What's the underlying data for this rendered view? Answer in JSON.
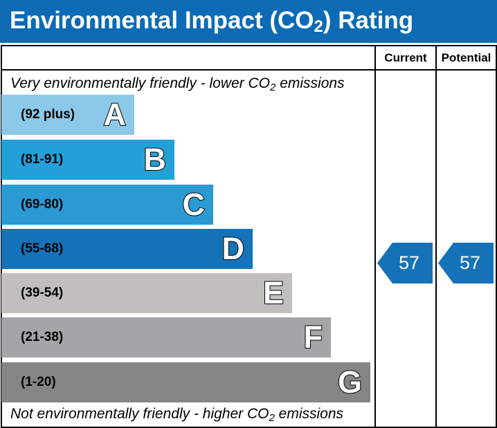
{
  "header": {
    "title_prefix": "Environmental Impact (CO",
    "title_sub": "2",
    "title_suffix": ") Rating",
    "background_color": "#0c6bb4"
  },
  "columns": {
    "current_label": "Current",
    "potential_label": "Potential"
  },
  "notes": {
    "top_prefix": "Very environmentally friendly - lower CO",
    "top_sub": "2",
    "top_suffix": " emissions",
    "bottom_prefix": "Not environmentally friendly - higher CO",
    "bottom_sub": "2",
    "bottom_suffix": " emissions"
  },
  "chart_data": {
    "type": "bar",
    "categories": [
      "A",
      "B",
      "C",
      "D",
      "E",
      "F",
      "G"
    ],
    "bands": [
      {
        "letter": "A",
        "range": "(92 plus)",
        "min": 92,
        "max": null,
        "color": "#8cc8e8"
      },
      {
        "letter": "B",
        "range": "(81-91)",
        "min": 81,
        "max": 91,
        "color": "#23a0d8"
      },
      {
        "letter": "C",
        "range": "(69-80)",
        "min": 69,
        "max": 80,
        "color": "#2b9ad3"
      },
      {
        "letter": "D",
        "range": "(55-68)",
        "min": 55,
        "max": 68,
        "color": "#1572b8"
      },
      {
        "letter": "E",
        "range": "(39-54)",
        "min": 39,
        "max": 54,
        "color": "#c0bfbc"
      },
      {
        "letter": "F",
        "range": "(21-38)",
        "min": 21,
        "max": 38,
        "color": "#a4a5a7"
      },
      {
        "letter": "G",
        "range": "(1-20)",
        "min": 1,
        "max": 20,
        "color": "#858585"
      }
    ],
    "current": {
      "value": 57,
      "label": "57",
      "band": "D",
      "color": "#1572b8"
    },
    "potential": {
      "value": 57,
      "label": "57",
      "band": "D",
      "color": "#1572b8"
    }
  }
}
